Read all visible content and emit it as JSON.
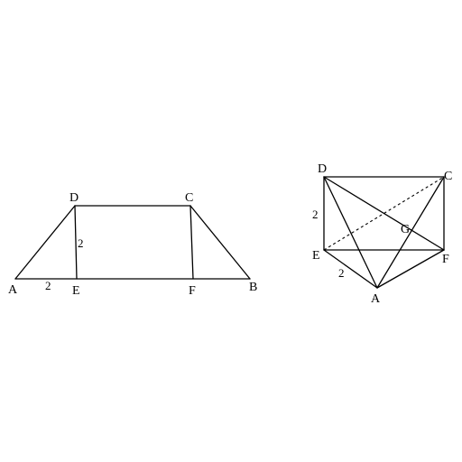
{
  "figure_left": {
    "points": {
      "A": "A",
      "B": "B",
      "C": "C",
      "D": "D",
      "E": "E",
      "F": "F"
    },
    "length_AE": "2",
    "length_DE": "2"
  },
  "figure_right": {
    "points": {
      "A": "A",
      "C": "C",
      "D": "D",
      "E": "E",
      "F": "F",
      "G": "G"
    },
    "length_DE": "2",
    "length_EA": "2"
  }
}
